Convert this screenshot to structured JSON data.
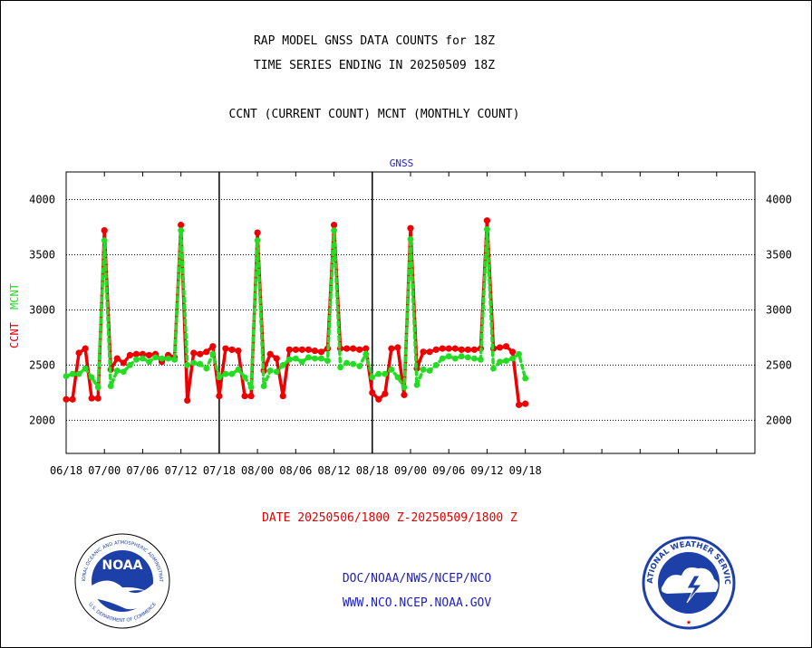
{
  "header": {
    "title_line1": "RAP MODEL GNSS DATA COUNTS for 18Z",
    "title_line2": "TIME SERIES ENDING IN 20250509 18Z",
    "title_line3": "CCNT (CURRENT COUNT) MCNT (MONTHLY COUNT)"
  },
  "chart_data": {
    "type": "line",
    "title": "GNSS",
    "ylabel_ccnt": "CCNT",
    "ylabel_mcnt": "MCNT",
    "ylim": [
      1700,
      4250
    ],
    "yticks": [
      2000,
      2500,
      3000,
      3500,
      4000
    ],
    "xlim": [
      0,
      108
    ],
    "x_tick_positions": [
      0,
      6,
      12,
      18,
      24,
      30,
      36,
      42,
      48,
      54,
      60,
      66,
      72,
      78,
      84,
      90,
      96,
      102,
      108
    ],
    "x_tick_labels": [
      "06/18",
      "07/00",
      "07/06",
      "07/12",
      "07/18",
      "08/00",
      "08/06",
      "08/12",
      "08/18",
      "09/00",
      "09/06",
      "09/12",
      "09/18"
    ],
    "x_label_positions": [
      0,
      6,
      12,
      18,
      24,
      30,
      36,
      42,
      48,
      54,
      60,
      66,
      72
    ],
    "day_dividers": [
      24,
      48
    ],
    "grid": true,
    "series": [
      {
        "name": "CCNT",
        "color": "#ee0000",
        "x": [
          0,
          1,
          2,
          3,
          4,
          5,
          6,
          7,
          8,
          9,
          10,
          11,
          12,
          13,
          14,
          15,
          16,
          17,
          18,
          19,
          20,
          21,
          22,
          23,
          24,
          25,
          26,
          27,
          28,
          29,
          30,
          31,
          32,
          33,
          34,
          35,
          36,
          37,
          38,
          39,
          40,
          41,
          42,
          43,
          44,
          45,
          46,
          47,
          48,
          49,
          50,
          51,
          52,
          53,
          54,
          55,
          56,
          57,
          58,
          59,
          60,
          61,
          62,
          63,
          64,
          65,
          66,
          67,
          68,
          69,
          70,
          71,
          72
        ],
        "values": [
          2190,
          2190,
          2610,
          2650,
          2200,
          2200,
          3720,
          2460,
          2560,
          2520,
          2590,
          2600,
          2600,
          2590,
          2600,
          2530,
          2590,
          2570,
          3770,
          2180,
          2610,
          2600,
          2620,
          2670,
          2220,
          2650,
          2640,
          2630,
          2220,
          2220,
          3700,
          2450,
          2600,
          2560,
          2220,
          2640,
          2640,
          2640,
          2640,
          2630,
          2620,
          2650,
          3770,
          2650,
          2650,
          2650,
          2640,
          2650,
          2250,
          2190,
          2240,
          2650,
          2660,
          2230,
          3740,
          2470,
          2620,
          2620,
          2640,
          2650,
          2650,
          2650,
          2640,
          2640,
          2640,
          2650,
          3810,
          2650,
          2660,
          2670,
          2620,
          2140,
          2150
        ]
      },
      {
        "name": "MCNT",
        "color": "#22dd22",
        "x": [
          0,
          1,
          2,
          3,
          4,
          5,
          6,
          7,
          8,
          9,
          10,
          11,
          12,
          13,
          14,
          15,
          16,
          17,
          18,
          19,
          20,
          21,
          22,
          23,
          24,
          25,
          26,
          27,
          28,
          29,
          30,
          31,
          32,
          33,
          34,
          35,
          36,
          37,
          38,
          39,
          40,
          41,
          42,
          43,
          44,
          45,
          46,
          47,
          48,
          49,
          50,
          51,
          52,
          53,
          54,
          55,
          56,
          57,
          58,
          59,
          60,
          61,
          62,
          63,
          64,
          65,
          66,
          67,
          68,
          69,
          70,
          71,
          72
        ],
        "values": [
          2400,
          2420,
          2420,
          2470,
          2390,
          2300,
          3630,
          2310,
          2450,
          2440,
          2500,
          2550,
          2560,
          2530,
          2570,
          2560,
          2560,
          2550,
          3720,
          2500,
          2520,
          2510,
          2470,
          2600,
          2390,
          2420,
          2420,
          2460,
          2390,
          2300,
          3630,
          2310,
          2450,
          2440,
          2500,
          2550,
          2560,
          2530,
          2570,
          2560,
          2560,
          2540,
          3720,
          2480,
          2520,
          2510,
          2490,
          2600,
          2390,
          2420,
          2420,
          2460,
          2390,
          2300,
          3640,
          2320,
          2460,
          2450,
          2500,
          2560,
          2580,
          2560,
          2580,
          2570,
          2560,
          2550,
          3730,
          2470,
          2530,
          2540,
          2560,
          2600,
          2380
        ]
      }
    ]
  },
  "footer": {
    "date_range": "DATE 20250506/1800 Z-20250509/1800 Z",
    "org_path": "DOC/NOAA/NWS/NCEP/NCO",
    "website": "WWW.NCO.NCEP.NOAA.GOV",
    "noaa_logo_text": "NOAA",
    "noaa_ring_text": "NATIONAL OCEANIC AND ATMOSPHERIC ADMINISTRATION",
    "noaa_ring_bottom": "U.S. DEPARTMENT OF COMMERCE",
    "nws_ring_text": "NATIONAL WEATHER SERVICE"
  }
}
